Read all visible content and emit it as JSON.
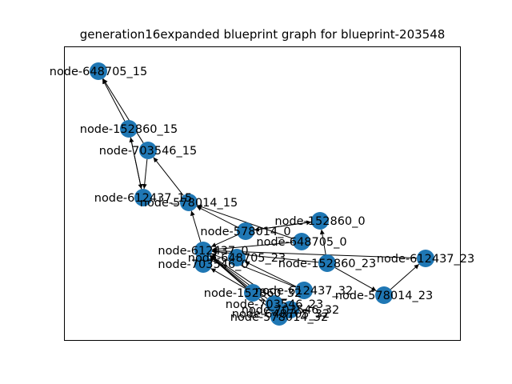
{
  "title": "generation16expanded blueprint graph for blueprint-203548",
  "colors": {
    "node": "#1f77b4",
    "edge": "#000000",
    "background": "#ffffff"
  },
  "graph": {
    "nodes": [
      {
        "id": "n0",
        "label": "node-648705_15"
      },
      {
        "id": "n1",
        "label": "node-152860_15"
      },
      {
        "id": "n2",
        "label": "node-703546_15"
      },
      {
        "id": "n3",
        "label": "node-612437_15"
      },
      {
        "id": "n4",
        "label": "node-578014_15"
      },
      {
        "id": "n5",
        "label": "node-152860_0"
      },
      {
        "id": "n6",
        "label": "node-578014_0"
      },
      {
        "id": "n7",
        "label": "node-648705_0"
      },
      {
        "id": "n8",
        "label": "node-612437_0"
      },
      {
        "id": "n9",
        "label": "node-648705_23"
      },
      {
        "id": "n10",
        "label": "node-703546_0"
      },
      {
        "id": "n11",
        "label": "node-152860_23"
      },
      {
        "id": "n12",
        "label": "node-612437_23"
      },
      {
        "id": "n13",
        "label": "node-578014_23"
      },
      {
        "id": "n14",
        "label": "node-152860_32"
      },
      {
        "id": "n15",
        "label": "node-612437_32"
      },
      {
        "id": "n16",
        "label": "node-703546_23"
      },
      {
        "id": "n17",
        "label": "node-703546_32"
      },
      {
        "id": "n18",
        "label": "node-648705_32"
      },
      {
        "id": "n19",
        "label": "node-578014_32"
      }
    ],
    "edges": [
      [
        "n1",
        "n0"
      ],
      [
        "n2",
        "n0"
      ],
      [
        "n1",
        "n3"
      ],
      [
        "n2",
        "n3"
      ],
      [
        "n4",
        "n2"
      ],
      [
        "n3",
        "n1"
      ],
      [
        "n6",
        "n4"
      ],
      [
        "n5",
        "n6"
      ],
      [
        "n6",
        "n8"
      ],
      [
        "n7",
        "n4"
      ],
      [
        "n6",
        "n5"
      ],
      [
        "n8",
        "n4"
      ],
      [
        "n11",
        "n5"
      ],
      [
        "n11",
        "n8"
      ],
      [
        "n11",
        "n13"
      ],
      [
        "n13",
        "n12"
      ],
      [
        "n14",
        "n8"
      ],
      [
        "n15",
        "n8"
      ],
      [
        "n16",
        "n8"
      ],
      [
        "n17",
        "n8"
      ],
      [
        "n18",
        "n8"
      ],
      [
        "n19",
        "n8"
      ],
      [
        "n15",
        "n9"
      ],
      [
        "n14",
        "n10"
      ],
      [
        "n12",
        "n8"
      ],
      [
        "n7",
        "n8"
      ]
    ]
  }
}
